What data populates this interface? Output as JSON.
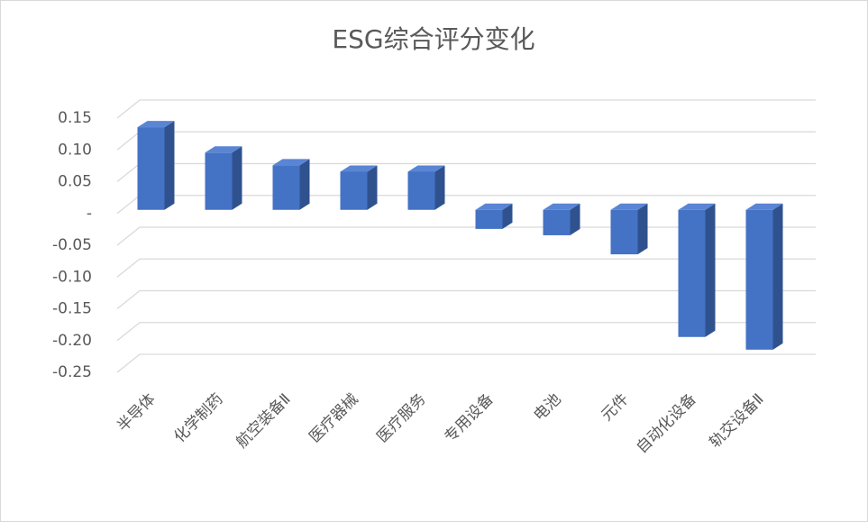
{
  "chart_data": {
    "type": "bar3d",
    "title": "ESG综合评分变化",
    "categories": [
      "半导体",
      "化学制药",
      "航空装备Ⅱ",
      "医疗器械",
      "医疗服务",
      "专用设备",
      "电池",
      "元件",
      "自动化设备",
      "轨交设备Ⅱ"
    ],
    "values": [
      0.13,
      0.09,
      0.07,
      0.06,
      0.06,
      -0.03,
      -0.04,
      -0.07,
      -0.2,
      -0.22
    ],
    "color": "#4472c4",
    "ylim": [
      -0.25,
      0.15
    ],
    "yticks": [
      0.15,
      {
        "value": 0.1,
        "label": "0.10"
      },
      0.05,
      {
        "value": 0,
        "label": "-"
      },
      -0.05,
      {
        "value": -0.1,
        "label": "-0.10"
      },
      -0.15,
      {
        "value": -0.2,
        "label": "-0.20"
      },
      -0.25
    ],
    "grid": true
  }
}
